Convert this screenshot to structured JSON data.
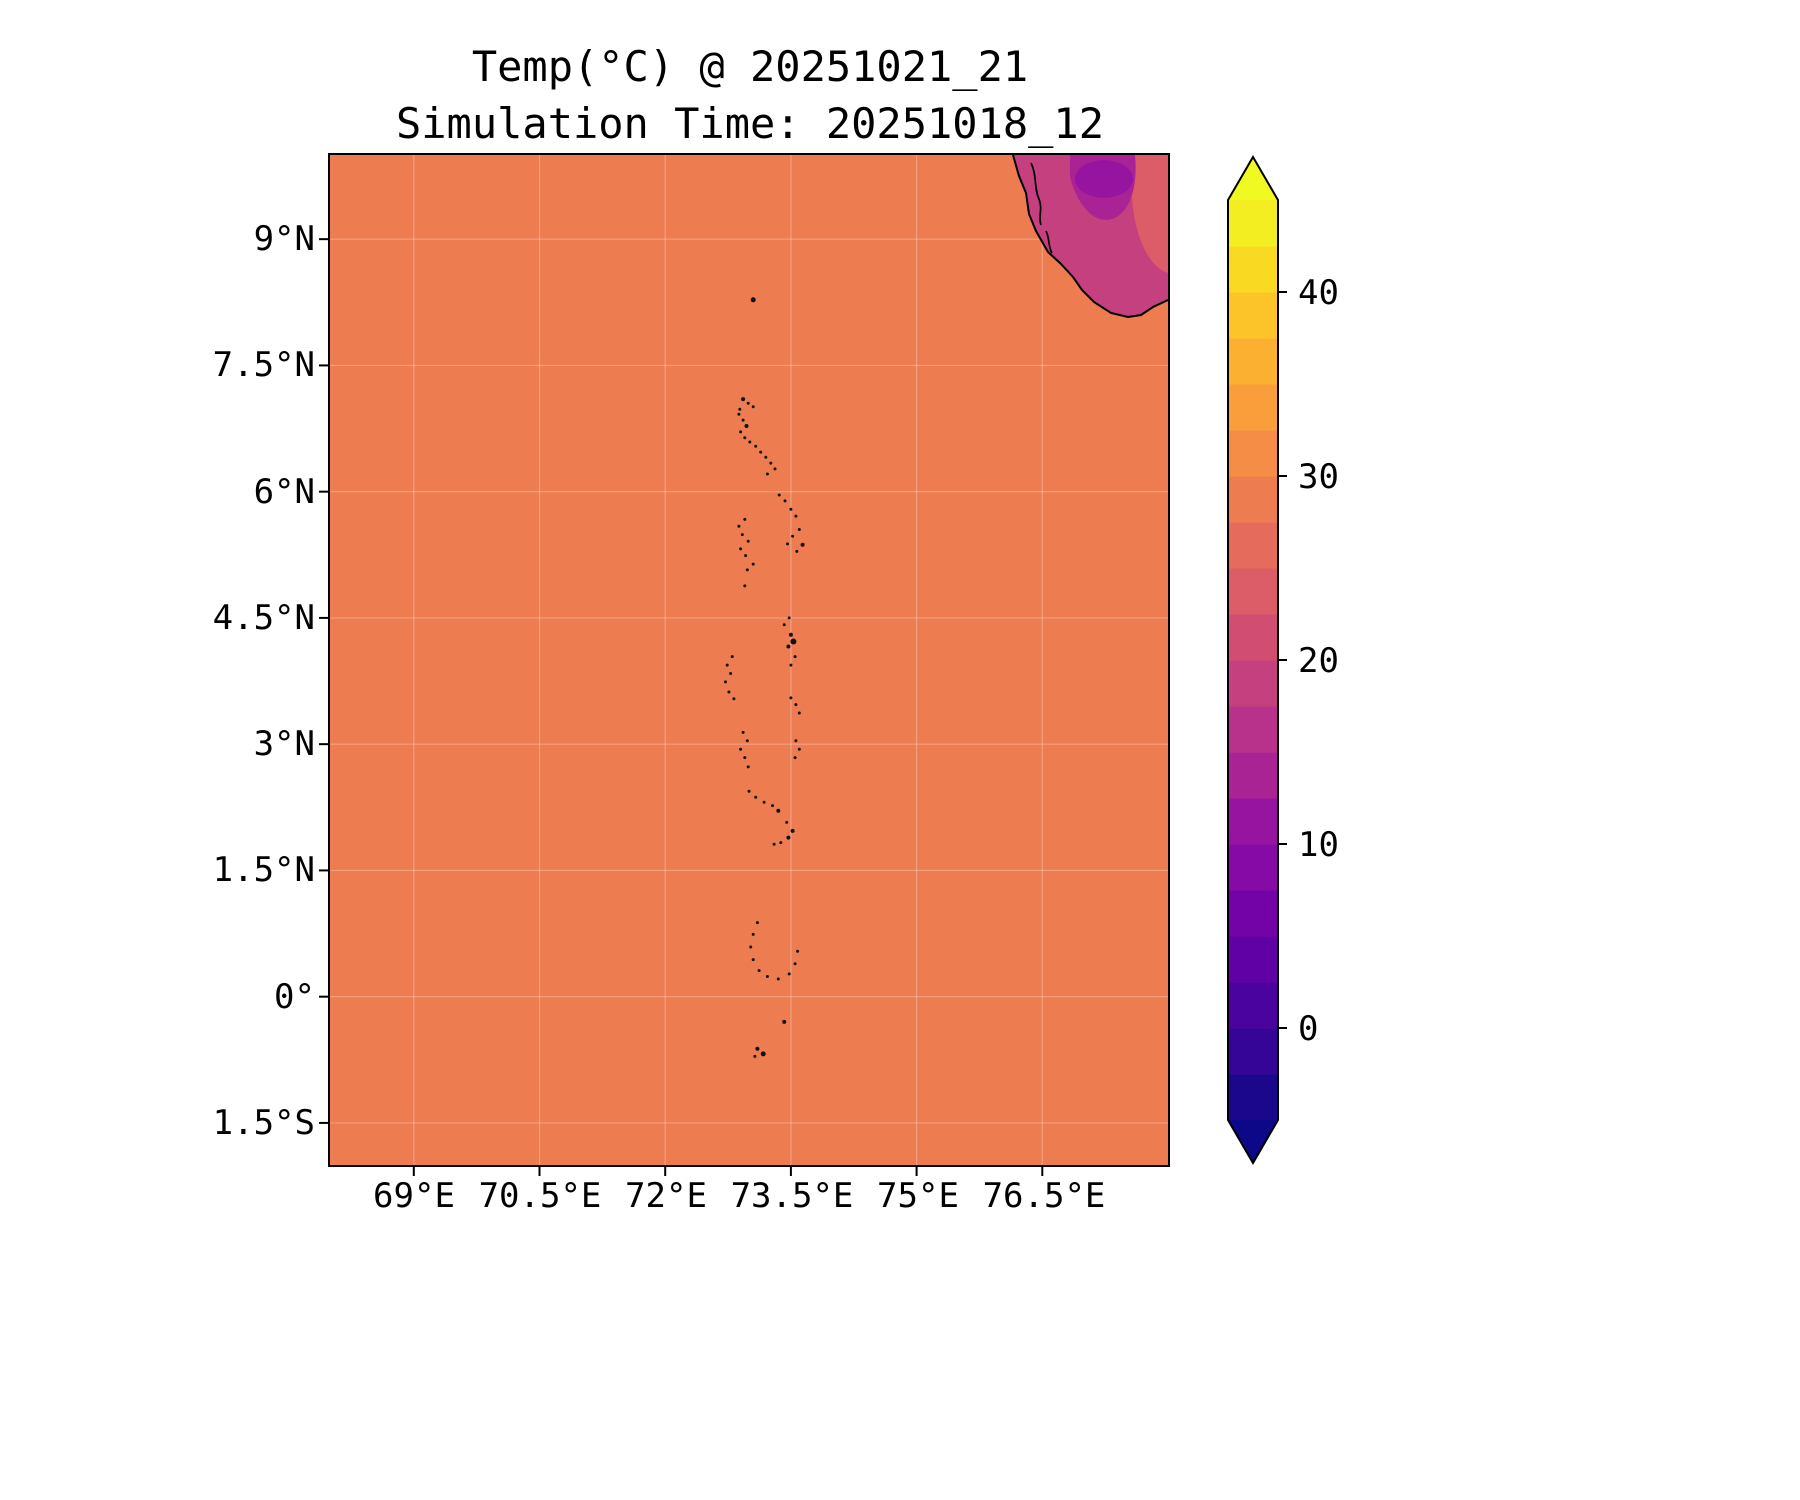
{
  "title": {
    "line1": "Temp(°C) @ 20251021_21",
    "line2": "Simulation Time: 20251018_12"
  },
  "axes": {
    "y_ticks": [
      {
        "label": "9°N",
        "lat": 9
      },
      {
        "label": "7.5°N",
        "lat": 7.5
      },
      {
        "label": "6°N",
        "lat": 6
      },
      {
        "label": "4.5°N",
        "lat": 4.5
      },
      {
        "label": "3°N",
        "lat": 3
      },
      {
        "label": "1.5°N",
        "lat": 1.5
      },
      {
        "label": "0°",
        "lat": 0
      },
      {
        "label": "1.5°S",
        "lat": -1.5
      }
    ],
    "x_ticks": [
      {
        "label": "69°E",
        "lon": 69
      },
      {
        "label": "70.5°E",
        "lon": 70.5
      },
      {
        "label": "72°E",
        "lon": 72
      },
      {
        "label": "73.5°E",
        "lon": 73.5
      },
      {
        "label": "75°E",
        "lon": 75
      },
      {
        "label": "76.5°E",
        "lon": 76.5
      }
    ]
  },
  "colorbar": {
    "colormap": "plasma",
    "min": -5,
    "max": 45,
    "extend": "both",
    "under_color": "#0d0887",
    "over_color": "#f0f921",
    "band_colors": [
      "#1a078c",
      "#340597",
      "#4b03a0",
      "#6001a5",
      "#7303a7",
      "#860aa5",
      "#9714a0",
      "#a92395",
      "#b8318a",
      "#c5407e",
      "#d14e72",
      "#dc5d68",
      "#e56c5c",
      "#ee7c51",
      "#f58d46",
      "#fa9d3b",
      "#fcb032",
      "#fcc429",
      "#f9d922",
      "#f3ee21"
    ],
    "ticks": [
      {
        "value": 0,
        "label": "0"
      },
      {
        "value": 10,
        "label": "10"
      },
      {
        "value": 20,
        "label": "20"
      },
      {
        "value": 30,
        "label": "30"
      },
      {
        "value": 40,
        "label": "40"
      }
    ]
  },
  "colors": {
    "ocean": "#ee7c51",
    "land_base": "#c5407e",
    "land_warm_patch": "#dc5d68",
    "land_cool_patch": "#a92395",
    "land_cooler_patch": "#9714a0",
    "coastline": "#000000",
    "island": "#111111"
  },
  "map": {
    "extent": {
      "lon_min": 68,
      "lon_max": 78,
      "lat_min": -2,
      "lat_max": 10
    },
    "islands": [
      [
        73.05,
        8.28,
        2.5
      ],
      [
        72.93,
        7.1,
        2
      ],
      [
        72.99,
        7.05,
        1.5
      ],
      [
        73.05,
        7.01,
        1.5
      ],
      [
        72.89,
        6.98,
        1.5
      ],
      [
        72.88,
        6.92,
        1.5
      ],
      [
        72.93,
        6.85,
        1.5
      ],
      [
        72.97,
        6.78,
        2
      ],
      [
        72.9,
        6.71,
        1.5
      ],
      [
        72.95,
        6.64,
        1.5
      ],
      [
        73.01,
        6.59,
        1.5
      ],
      [
        73.08,
        6.54,
        1.5
      ],
      [
        73.14,
        6.47,
        1.5
      ],
      [
        73.2,
        6.41,
        1.5
      ],
      [
        73.26,
        6.34,
        1.5
      ],
      [
        73.31,
        6.27,
        1.5
      ],
      [
        73.22,
        6.21,
        1.5
      ],
      [
        73.36,
        5.96,
        1.5
      ],
      [
        73.43,
        5.89,
        1.5
      ],
      [
        73.5,
        5.79,
        1.5
      ],
      [
        73.56,
        5.71,
        1.5
      ],
      [
        73.6,
        5.55,
        1.5
      ],
      [
        73.52,
        5.47,
        1.5
      ],
      [
        73.46,
        5.38,
        1.5
      ],
      [
        73.64,
        5.37,
        2
      ],
      [
        73.57,
        5.29,
        1.5
      ],
      [
        72.95,
        5.67,
        1.5
      ],
      [
        72.88,
        5.59,
        1.5
      ],
      [
        72.92,
        5.49,
        1.5
      ],
      [
        72.99,
        5.41,
        1.5
      ],
      [
        72.9,
        5.32,
        1.5
      ],
      [
        72.96,
        5.24,
        1.5
      ],
      [
        73.05,
        5.14,
        1.5
      ],
      [
        72.98,
        5.07,
        1.5
      ],
      [
        72.95,
        4.88,
        1.5
      ],
      [
        73.48,
        4.5,
        1.5
      ],
      [
        73.42,
        4.42,
        1.5
      ],
      [
        73.5,
        4.3,
        2
      ],
      [
        73.53,
        4.22,
        3
      ],
      [
        73.47,
        4.16,
        2
      ],
      [
        73.55,
        4.04,
        1.5
      ],
      [
        73.5,
        3.94,
        1.5
      ],
      [
        72.8,
        4.04,
        1.5
      ],
      [
        72.74,
        3.94,
        1.5
      ],
      [
        72.78,
        3.84,
        1.5
      ],
      [
        72.72,
        3.74,
        1.5
      ],
      [
        72.76,
        3.62,
        1.5
      ],
      [
        72.82,
        3.54,
        1.5
      ],
      [
        73.5,
        3.55,
        1.5
      ],
      [
        73.56,
        3.47,
        1.5
      ],
      [
        73.6,
        3.37,
        1.5
      ],
      [
        72.93,
        3.14,
        1.5
      ],
      [
        72.98,
        3.04,
        1.5
      ],
      [
        72.9,
        2.94,
        1.5
      ],
      [
        72.95,
        2.84,
        1.5
      ],
      [
        72.99,
        2.73,
        1.5
      ],
      [
        73.56,
        3.04,
        1.5
      ],
      [
        73.6,
        2.94,
        1.5
      ],
      [
        73.55,
        2.84,
        1.5
      ],
      [
        73.0,
        2.44,
        1.5
      ],
      [
        73.08,
        2.37,
        1.5
      ],
      [
        73.18,
        2.31,
        1.5
      ],
      [
        73.28,
        2.27,
        1.5
      ],
      [
        73.35,
        2.21,
        2
      ],
      [
        73.45,
        2.07,
        1.5
      ],
      [
        73.52,
        1.97,
        2
      ],
      [
        73.47,
        1.89,
        2
      ],
      [
        73.38,
        1.83,
        1.5
      ],
      [
        73.3,
        1.81,
        1.5
      ],
      [
        73.1,
        0.88,
        1.5
      ],
      [
        73.05,
        0.74,
        1.5
      ],
      [
        73.02,
        0.59,
        1.5
      ],
      [
        73.05,
        0.44,
        1.5
      ],
      [
        73.12,
        0.31,
        1.5
      ],
      [
        73.22,
        0.24,
        1.5
      ],
      [
        73.35,
        0.21,
        1.5
      ],
      [
        73.48,
        0.27,
        1.5
      ],
      [
        73.55,
        0.39,
        1.5
      ],
      [
        73.58,
        0.54,
        1.5
      ],
      [
        73.42,
        -0.3,
        2
      ],
      [
        73.1,
        -0.62,
        2
      ],
      [
        73.17,
        -0.68,
        2.5
      ],
      [
        73.07,
        -0.71,
        1.5
      ]
    ]
  },
  "chart_data": {
    "type": "heatmap",
    "title": "Temp(°C) @ 20251021_21",
    "subtitle": "Simulation Time: 20251018_12",
    "valid_time": "20251021_21",
    "simulation_time": "20251018_12",
    "xlabel": "",
    "ylabel": "",
    "x_ticks": [
      "69°E",
      "70.5°E",
      "72°E",
      "73.5°E",
      "75°E",
      "76.5°E"
    ],
    "y_ticks": [
      "9°N",
      "7.5°N",
      "6°N",
      "4.5°N",
      "3°N",
      "1.5°N",
      "0°",
      "1.5°S"
    ],
    "xlim_deg_east": [
      68,
      78
    ],
    "ylim_deg_north": [
      -2,
      10
    ],
    "grid": true,
    "colormap": "plasma",
    "color_scale": {
      "min": -5,
      "max": 45,
      "step": 2.5,
      "ticks": [
        0,
        10,
        20,
        30,
        40
      ],
      "extend": "both"
    },
    "legend_position": "right-colorbar",
    "values_summary": [
      {
        "region": "ocean (most of domain)",
        "temp_c": 28
      },
      {
        "region": "India southwest land area (top-right corner)",
        "temp_c_range": [
          13,
          25
        ]
      }
    ],
    "features": [
      "Maldives island chain near 73°E from 7°N to 0.7°S",
      "Minicoy island near 8.3°N",
      "Indian subcontinent coastline entering top-right corner"
    ]
  }
}
